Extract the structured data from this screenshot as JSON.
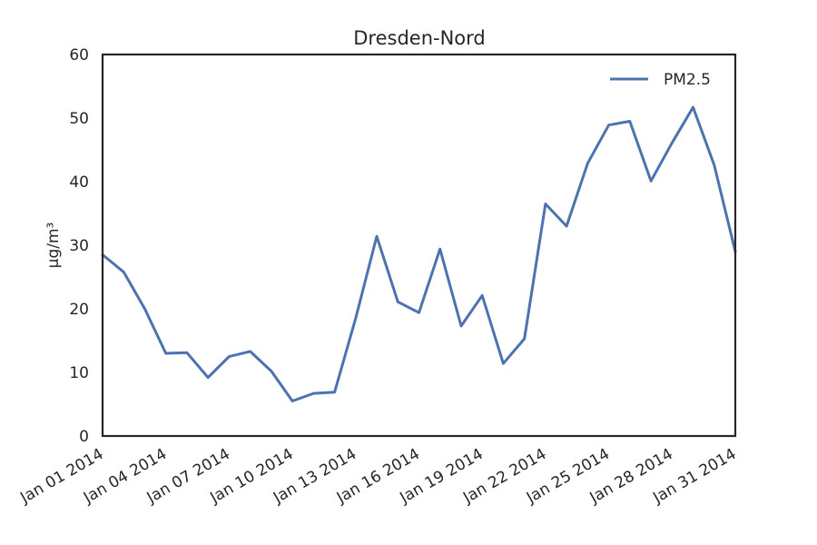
{
  "chart_data": {
    "type": "line",
    "title": "Dresden-Nord",
    "xlabel": "",
    "ylabel": "µg/m³",
    "ylim": [
      0,
      60
    ],
    "yticks": [
      0,
      10,
      20,
      30,
      40,
      50,
      60
    ],
    "xlim": [
      "2014-01-01",
      "2014-01-31"
    ],
    "xtick_labels": [
      "Jan 01 2014",
      "Jan 04 2014",
      "Jan 07 2014",
      "Jan 10 2014",
      "Jan 13 2014",
      "Jan 16 2014",
      "Jan 19 2014",
      "Jan 22 2014",
      "Jan 25 2014",
      "Jan 28 2014",
      "Jan 31 2014"
    ],
    "grid": false,
    "legend_position": "top-right",
    "series": [
      {
        "name": "PM2.5",
        "color": "#4c72b0",
        "x": [
          "2014-01-01",
          "2014-01-02",
          "2014-01-03",
          "2014-01-04",
          "2014-01-05",
          "2014-01-06",
          "2014-01-07",
          "2014-01-08",
          "2014-01-09",
          "2014-01-10",
          "2014-01-11",
          "2014-01-12",
          "2014-01-13",
          "2014-01-14",
          "2014-01-15",
          "2014-01-16",
          "2014-01-17",
          "2014-01-18",
          "2014-01-19",
          "2014-01-20",
          "2014-01-21",
          "2014-01-22",
          "2014-01-23",
          "2014-01-24",
          "2014-01-25",
          "2014-01-26",
          "2014-01-27",
          "2014-01-28",
          "2014-01-29",
          "2014-01-30",
          "2014-01-31"
        ],
        "values": [
          28.5,
          25.8,
          20.0,
          13.0,
          13.1,
          9.2,
          12.5,
          13.3,
          10.2,
          5.5,
          6.7,
          6.9,
          18.5,
          31.4,
          21.1,
          19.4,
          29.4,
          17.3,
          22.1,
          11.4,
          15.3,
          36.5,
          33.0,
          42.9,
          48.9,
          49.5,
          40.1,
          46.1,
          51.7,
          42.6,
          29.0
        ]
      }
    ]
  }
}
